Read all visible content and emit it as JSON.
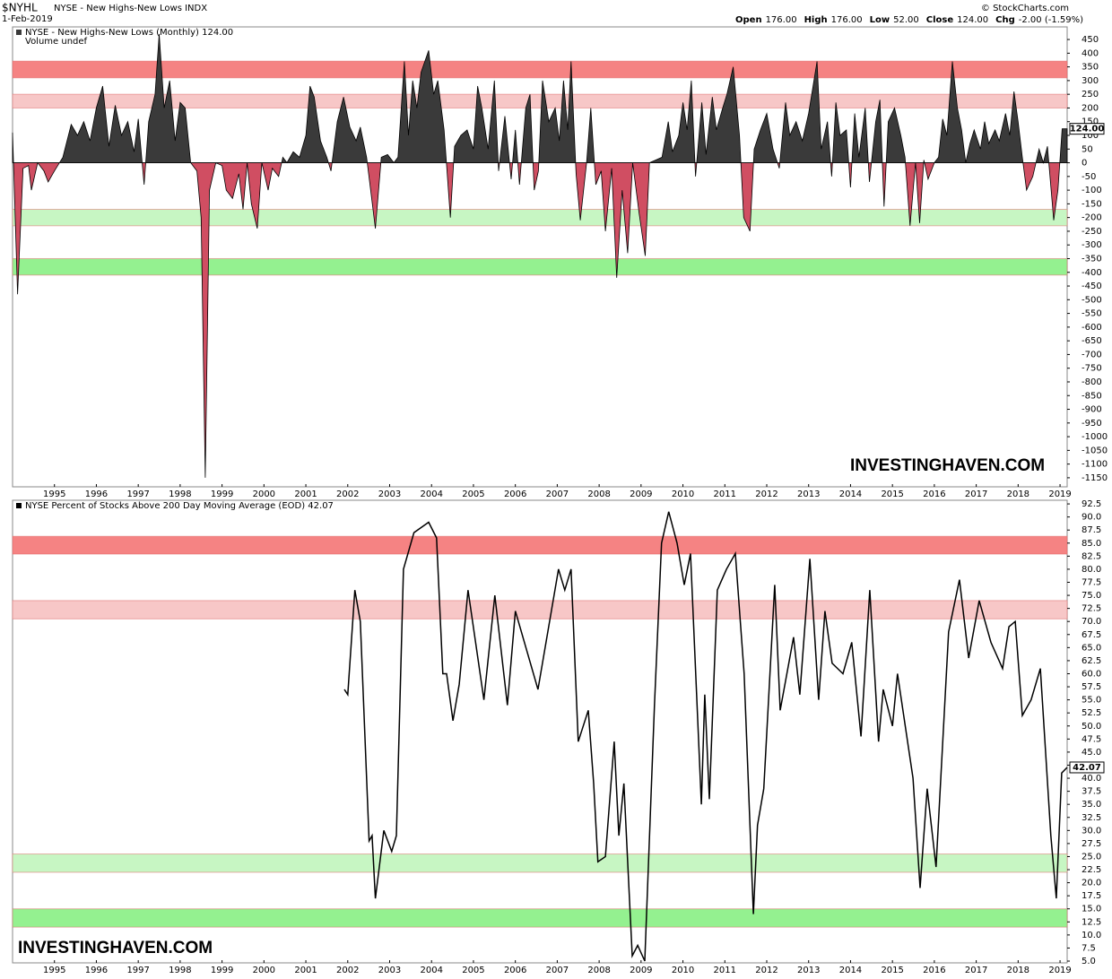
{
  "header": {
    "symbol": "$NYHL",
    "name": "NYSE - New Highs-New Lows INDX",
    "date": "1-Feb-2019",
    "source": "© StockCharts.com",
    "quote": [
      [
        "Open",
        "176.00"
      ],
      [
        "High",
        "176.00"
      ],
      [
        "Low",
        "52.00"
      ],
      [
        "Close",
        "124.00"
      ],
      [
        "Chg",
        "-2.00 (-1.59%)"
      ]
    ]
  },
  "chart_data": [
    {
      "type": "area",
      "subtitle": "Volume undef",
      "annotation": "INVESTINGHAVEN.COM",
      "last_label": "124.00",
      "xlim": [
        1994,
        2019.17
      ],
      "ylim": [
        -1183,
        496
      ],
      "xticks": [
        1995,
        1996,
        1997,
        1998,
        1999,
        2000,
        2001,
        2002,
        2003,
        2004,
        2005,
        2006,
        2007,
        2008,
        2009,
        2010,
        2011,
        2012,
        2013,
        2014,
        2015,
        2016,
        2017,
        2018,
        2019
      ],
      "yticks": [
        450,
        400,
        350,
        300,
        250,
        200,
        150,
        100,
        50,
        0,
        -50,
        -100,
        -150,
        -200,
        -250,
        -300,
        -350,
        -400,
        -450,
        -500,
        -550,
        -600,
        -650,
        -700,
        -750,
        -800,
        -850,
        -900,
        -950,
        -1000,
        -1050,
        -1100,
        -1150
      ],
      "bands": [
        {
          "from": 310,
          "to": 371,
          "color": "#f47c7c"
        },
        {
          "from": 200,
          "to": 250,
          "color": "#f7c4c4"
        },
        {
          "from": -230,
          "to": -170,
          "color": "#c4f5c0"
        },
        {
          "from": -410,
          "to": -350,
          "color": "#8ef08a"
        }
      ],
      "series": [
        {
          "name": "NYSE - New Highs-New Lows (Monthly) 124.00",
          "color": "#3a3a3a",
          "negative_color": "#d04e62",
          "x": [
            1994.0,
            1994.12,
            1994.25,
            1994.38,
            1994.45,
            1994.6,
            1994.75,
            1994.85,
            1995.0,
            1995.2,
            1995.4,
            1995.55,
            1995.7,
            1995.85,
            1996.0,
            1996.15,
            1996.3,
            1996.45,
            1996.6,
            1996.75,
            1996.9,
            1997.0,
            1997.14,
            1997.25,
            1997.4,
            1997.5,
            1997.62,
            1997.75,
            1997.88,
            1998.0,
            1998.12,
            1998.25,
            1998.4,
            1998.5,
            1998.6,
            1998.7,
            1998.85,
            1999.0,
            1999.1,
            1999.25,
            1999.4,
            1999.5,
            1999.6,
            1999.7,
            1999.84,
            1999.95,
            2000.1,
            2000.2,
            2000.35,
            2000.45,
            2000.55,
            2000.7,
            2000.85,
            2001.0,
            2001.1,
            2001.2,
            2001.35,
            2001.5,
            2001.6,
            2001.75,
            2001.9,
            2002.05,
            2002.2,
            2002.3,
            2002.45,
            2002.66,
            2002.8,
            2002.95,
            2003.1,
            2003.2,
            2003.35,
            2003.45,
            2003.55,
            2003.65,
            2003.75,
            2003.93,
            2004.05,
            2004.15,
            2004.3,
            2004.45,
            2004.55,
            2004.7,
            2004.85,
            2005.0,
            2005.1,
            2005.2,
            2005.35,
            2005.5,
            2005.6,
            2005.75,
            2005.9,
            2006.0,
            2006.1,
            2006.25,
            2006.35,
            2006.45,
            2006.55,
            2006.65,
            2006.8,
            2006.95,
            2007.05,
            2007.15,
            2007.25,
            2007.33,
            2007.45,
            2007.55,
            2007.7,
            2007.8,
            2007.92,
            2008.05,
            2008.15,
            2008.3,
            2008.42,
            2008.55,
            2008.68,
            2008.8,
            2008.95,
            2009.1,
            2009.2,
            2009.35,
            2009.5,
            2009.65,
            2009.75,
            2009.9,
            2010.0,
            2010.1,
            2010.2,
            2010.3,
            2010.45,
            2010.55,
            2010.7,
            2010.8,
            2010.95,
            2011.05,
            2011.2,
            2011.35,
            2011.45,
            2011.6,
            2011.7,
            2011.85,
            2012.0,
            2012.15,
            2012.3,
            2012.45,
            2012.55,
            2012.7,
            2012.85,
            2013.0,
            2013.2,
            2013.3,
            2013.45,
            2013.55,
            2013.65,
            2013.75,
            2013.9,
            2014.0,
            2014.1,
            2014.2,
            2014.35,
            2014.45,
            2014.6,
            2014.7,
            2014.8,
            2014.9,
            2015.05,
            2015.2,
            2015.3,
            2015.42,
            2015.55,
            2015.65,
            2015.75,
            2015.85,
            2016.0,
            2016.1,
            2016.2,
            2016.3,
            2016.43,
            2016.55,
            2016.65,
            2016.75,
            2016.85,
            2016.95,
            2017.1,
            2017.2,
            2017.3,
            2017.45,
            2017.55,
            2017.7,
            2017.8,
            2017.9,
            2018.0,
            2018.1,
            2018.2,
            2018.35,
            2018.5,
            2018.6,
            2018.7,
            2018.85,
            2018.95,
            2019.05,
            2019.17
          ],
          "values": [
            110,
            -480,
            -20,
            -10,
            -100,
            0,
            -30,
            -70,
            -30,
            20,
            140,
            100,
            150,
            80,
            200,
            280,
            60,
            210,
            100,
            150,
            40,
            160,
            -80,
            150,
            250,
            470,
            200,
            300,
            80,
            220,
            200,
            0,
            -30,
            -200,
            -1150,
            -100,
            0,
            -10,
            -100,
            -130,
            -40,
            -170,
            0,
            -150,
            -240,
            0,
            -100,
            -20,
            -50,
            20,
            0,
            40,
            20,
            100,
            280,
            240,
            80,
            20,
            -30,
            150,
            240,
            130,
            80,
            130,
            20,
            -240,
            20,
            30,
            0,
            20,
            370,
            100,
            300,
            200,
            330,
            410,
            250,
            300,
            120,
            -200,
            60,
            100,
            120,
            50,
            280,
            200,
            50,
            300,
            -30,
            170,
            -60,
            120,
            -80,
            200,
            250,
            -100,
            -30,
            300,
            150,
            200,
            80,
            300,
            120,
            370,
            -40,
            -210,
            0,
            200,
            -80,
            -30,
            -250,
            -20,
            -420,
            -100,
            -330,
            0,
            -180,
            -340,
            0,
            10,
            20,
            150,
            40,
            100,
            220,
            120,
            300,
            -50,
            220,
            30,
            240,
            120,
            200,
            250,
            350,
            100,
            -200,
            -250,
            50,
            120,
            180,
            50,
            -20,
            220,
            100,
            150,
            80,
            180,
            370,
            50,
            150,
            -50,
            220,
            100,
            120,
            -90,
            180,
            20,
            200,
            -70,
            150,
            230,
            -160,
            150,
            200,
            100,
            20,
            -230,
            0,
            -220,
            10,
            -60,
            0,
            20,
            160,
            100,
            370,
            200,
            120,
            0,
            70,
            120,
            50,
            150,
            70,
            120,
            80,
            180,
            100,
            260,
            150,
            20,
            -100,
            -50,
            50,
            0,
            60,
            -210,
            -100,
            124,
            124
          ]
        }
      ]
    },
    {
      "type": "line",
      "annotation": "INVESTINGHAVEN.COM",
      "last_label": "42.07",
      "xlim": [
        1994,
        2019.17
      ],
      "ylim": [
        4.66,
        93.2
      ],
      "xticks": [
        1995,
        1996,
        1997,
        1998,
        1999,
        2000,
        2001,
        2002,
        2003,
        2004,
        2005,
        2006,
        2007,
        2008,
        2009,
        2010,
        2011,
        2012,
        2013,
        2014,
        2015,
        2016,
        2017,
        2018,
        2019
      ],
      "yticks": [
        92.5,
        {
          "value": 90,
          "label": "90.0"
        },
        87.5,
        {
          "value": 85,
          "label": "85.0"
        },
        82.5,
        {
          "value": 80,
          "label": "80.0"
        },
        77.5,
        {
          "value": 75,
          "label": "75.0"
        },
        72.5,
        {
          "value": 70,
          "label": "70.0"
        },
        67.5,
        {
          "value": 65,
          "label": "65.0"
        },
        62.5,
        {
          "value": 60,
          "label": "60.0"
        },
        57.5,
        {
          "value": 55,
          "label": "55.0"
        },
        52.5,
        {
          "value": 50,
          "label": "50.0"
        },
        47.5,
        {
          "value": 45,
          "label": "45.0"
        },
        42.5,
        {
          "value": 40,
          "label": "40.0"
        },
        37.5,
        {
          "value": 35,
          "label": "35.0"
        },
        32.5,
        {
          "value": 30,
          "label": "30.0"
        },
        27.5,
        {
          "value": 25,
          "label": "25.0"
        },
        22.5,
        {
          "value": 20,
          "label": "20.0"
        },
        17.5,
        {
          "value": 15,
          "label": "15.0"
        },
        12.5,
        {
          "value": 10,
          "label": "10.0"
        },
        7.5,
        {
          "value": 5,
          "label": "5.0"
        }
      ],
      "bands": [
        {
          "from": 82.9,
          "to": 86.3,
          "color": "#f47c7c"
        },
        {
          "from": 70.5,
          "to": 74,
          "color": "#f7c4c4"
        },
        {
          "from": 22,
          "to": 25.5,
          "color": "#c4f5c0"
        },
        {
          "from": 11.5,
          "to": 15,
          "color": "#8ef08a"
        }
      ],
      "series": [
        {
          "name": "NYSE Percent of Stocks Above 200 Day Moving Average (EOD) 42.07",
          "color": "#000000",
          "x": [
            2001.92,
            2002.0,
            2002.17,
            2002.3,
            2002.51,
            2002.58,
            2002.66,
            2002.86,
            2003.05,
            2003.16,
            2003.33,
            2003.58,
            2003.93,
            2004.12,
            2004.27,
            2004.36,
            2004.51,
            2004.66,
            2004.87,
            2005.25,
            2005.51,
            2005.81,
            2006.0,
            2006.54,
            2007.03,
            2007.18,
            2007.33,
            2007.5,
            2007.74,
            2007.87,
            2007.97,
            2008.15,
            2008.36,
            2008.47,
            2008.59,
            2008.79,
            2008.92,
            2009.09,
            2009.32,
            2009.49,
            2009.66,
            2009.86,
            2010.03,
            2010.18,
            2010.44,
            2010.52,
            2010.63,
            2010.82,
            2011.04,
            2011.25,
            2011.46,
            2011.68,
            2011.78,
            2011.93,
            2012.19,
            2012.32,
            2012.64,
            2012.79,
            2013.03,
            2013.24,
            2013.39,
            2013.56,
            2013.82,
            2014.03,
            2014.25,
            2014.46,
            2014.67,
            2014.78,
            2015.0,
            2015.12,
            2015.49,
            2015.66,
            2015.83,
            2016.04,
            2016.34,
            2016.6,
            2016.82,
            2017.07,
            2017.35,
            2017.63,
            2017.78,
            2017.93,
            2018.1,
            2018.31,
            2018.53,
            2018.78,
            2018.91,
            2019.04,
            2019.17
          ],
          "values": [
            57,
            56,
            76,
            70,
            28,
            29,
            17,
            30,
            26,
            29,
            80,
            87,
            89,
            86,
            60,
            60,
            51,
            58,
            76,
            55,
            75,
            54,
            72,
            57,
            80,
            76,
            80,
            47,
            53,
            39,
            24,
            25,
            47,
            29,
            39,
            6,
            8,
            5,
            54,
            85,
            91,
            85,
            77,
            83,
            35,
            56,
            36,
            76,
            80,
            83,
            60,
            14,
            31,
            38,
            77,
            53,
            67,
            56,
            82,
            55,
            72,
            62,
            60,
            66,
            48,
            76,
            47,
            57,
            50,
            60,
            40,
            19,
            38,
            23,
            68,
            78,
            63,
            74,
            66,
            61,
            69,
            70,
            52,
            55,
            61,
            29,
            17,
            41,
            42.07
          ]
        }
      ]
    }
  ]
}
